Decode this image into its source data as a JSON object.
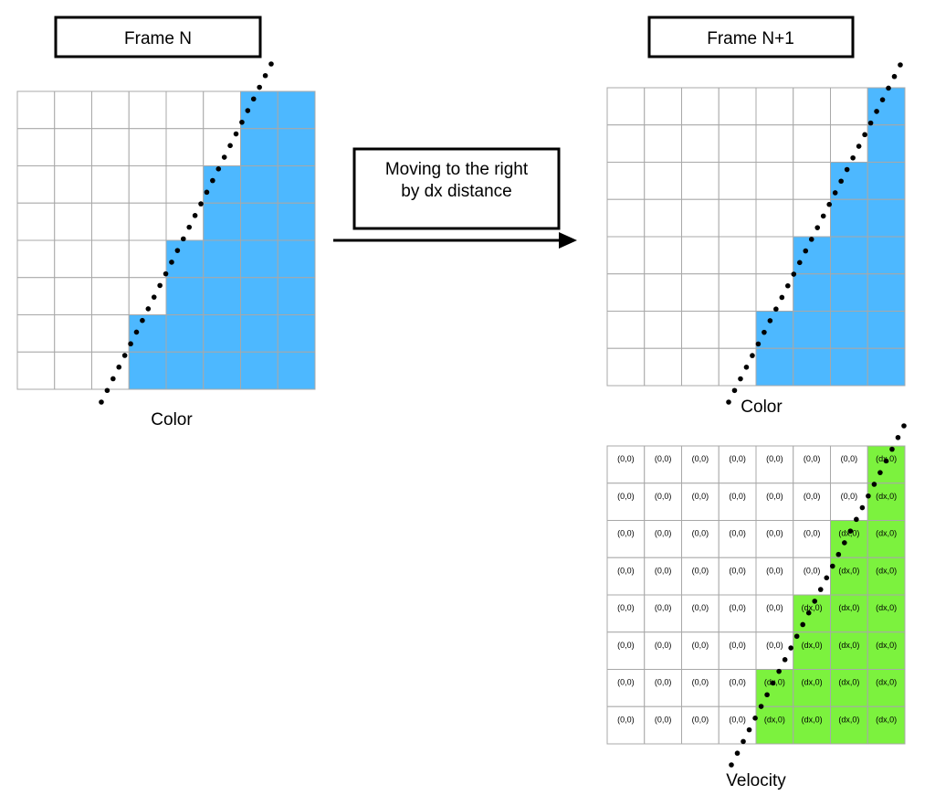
{
  "frame_n_title": "Frame N",
  "frame_n1_title": "Frame N+1",
  "motion_label_line1": "Moving to the right",
  "motion_label_line2": "by dx distance",
  "color_label": "Color",
  "velocity_label": "Velocity",
  "colors": {
    "filled": "#4db8ff",
    "velocity_filled": "#7cf23e",
    "empty": "#ffffff",
    "grid": "#a8a8a8"
  },
  "frame_n_grid": {
    "rows": [
      [
        0,
        0,
        0,
        0,
        0,
        0,
        1,
        1
      ],
      [
        0,
        0,
        0,
        0,
        0,
        0,
        1,
        1
      ],
      [
        0,
        0,
        0,
        0,
        0,
        1,
        1,
        1
      ],
      [
        0,
        0,
        0,
        0,
        0,
        1,
        1,
        1
      ],
      [
        0,
        0,
        0,
        0,
        1,
        1,
        1,
        1
      ],
      [
        0,
        0,
        0,
        0,
        1,
        1,
        1,
        1
      ],
      [
        0,
        0,
        0,
        1,
        1,
        1,
        1,
        1
      ],
      [
        0,
        0,
        0,
        1,
        1,
        1,
        1,
        1
      ]
    ]
  },
  "frame_n1_grid": {
    "rows": [
      [
        0,
        0,
        0,
        0,
        0,
        0,
        0,
        1
      ],
      [
        0,
        0,
        0,
        0,
        0,
        0,
        0,
        1
      ],
      [
        0,
        0,
        0,
        0,
        0,
        0,
        1,
        1
      ],
      [
        0,
        0,
        0,
        0,
        0,
        0,
        1,
        1
      ],
      [
        0,
        0,
        0,
        0,
        0,
        1,
        1,
        1
      ],
      [
        0,
        0,
        0,
        0,
        0,
        1,
        1,
        1
      ],
      [
        0,
        0,
        0,
        0,
        1,
        1,
        1,
        1
      ],
      [
        0,
        0,
        0,
        0,
        1,
        1,
        1,
        1
      ]
    ]
  },
  "velocity_grid": {
    "zero_label": "(0,0)",
    "moving_label": "(dx,0)",
    "rows": [
      [
        0,
        0,
        0,
        0,
        0,
        0,
        0,
        1
      ],
      [
        0,
        0,
        0,
        0,
        0,
        0,
        0,
        1
      ],
      [
        0,
        0,
        0,
        0,
        0,
        0,
        1,
        1
      ],
      [
        0,
        0,
        0,
        0,
        0,
        0,
        1,
        1
      ],
      [
        0,
        0,
        0,
        0,
        0,
        1,
        1,
        1
      ],
      [
        0,
        0,
        0,
        0,
        0,
        1,
        1,
        1
      ],
      [
        0,
        0,
        0,
        0,
        1,
        1,
        1,
        1
      ],
      [
        0,
        0,
        0,
        0,
        1,
        1,
        1,
        1
      ]
    ]
  }
}
